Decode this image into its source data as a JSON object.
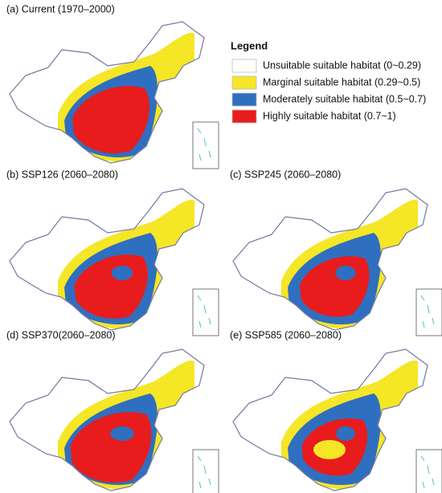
{
  "panels": [
    {
      "title": "(a) Current (1970–2000)"
    },
    {
      "title": "(b) SSP126 (2060–2080)"
    },
    {
      "title": "(c) SSP245 (2060–2080)"
    },
    {
      "title": "(d) SSP370(2060–2080)"
    },
    {
      "title": "(e) SSP585 (2060–2080)"
    }
  ],
  "legend": {
    "title": "Legend",
    "items": [
      {
        "label": "Unsuitable suitable habitat (0~0.29)",
        "color": "#ffffff"
      },
      {
        "label": "Marginal suitable habitat (0.29~0.5)",
        "color": "#f5e626"
      },
      {
        "label": "Moderately suitable habitat (0.5~0.7)",
        "color": "#2f6fc0"
      },
      {
        "label": "Highly suitable habitat (0.7~1)",
        "color": "#e81c1c"
      }
    ]
  }
}
